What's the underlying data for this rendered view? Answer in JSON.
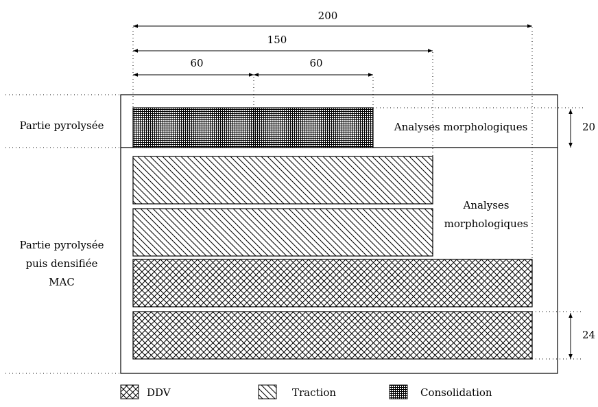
{
  "dimensions": {
    "total_width": "200",
    "mid_width": "150",
    "seg_left": "60",
    "seg_right": "60",
    "top_height": "20",
    "bottom_height": "24"
  },
  "zones": {
    "top_label": "Partie pyrolysée",
    "bottom_label_line1": "Partie pyrolysée",
    "bottom_label_line2": "puis densifiée",
    "bottom_label_line3": "MAC"
  },
  "annotations": {
    "top_analysis": "Analyses morphologiques",
    "mid_analysis_line1": "Analyses",
    "mid_analysis_line2": "morphologiques"
  },
  "legend": [
    {
      "label": "DDV",
      "pattern": "crosshatch"
    },
    {
      "label": "Traction",
      "pattern": "diagonal"
    },
    {
      "label": "Consolidation",
      "pattern": "grid"
    }
  ]
}
